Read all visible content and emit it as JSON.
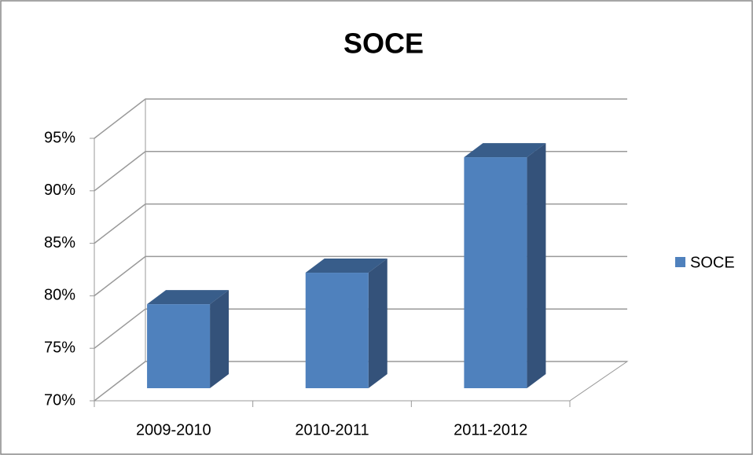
{
  "chart_data": {
    "type": "bar3d",
    "title": "SOCE",
    "categories": [
      "2009-2010",
      "2010-2011",
      "2011-2012"
    ],
    "series": [
      {
        "name": "SOCE",
        "color": "#4f81bd",
        "values": [
          78,
          81,
          92
        ]
      }
    ],
    "ylim": [
      70,
      95
    ],
    "yticks": [
      {
        "value": 70,
        "label": "70%"
      },
      {
        "value": 75,
        "label": "75%"
      },
      {
        "value": 80,
        "label": "80%"
      },
      {
        "value": 85,
        "label": "85%"
      },
      {
        "value": 90,
        "label": "90%"
      },
      {
        "value": 95,
        "label": "95%"
      }
    ],
    "grid": true,
    "legend": "right"
  }
}
